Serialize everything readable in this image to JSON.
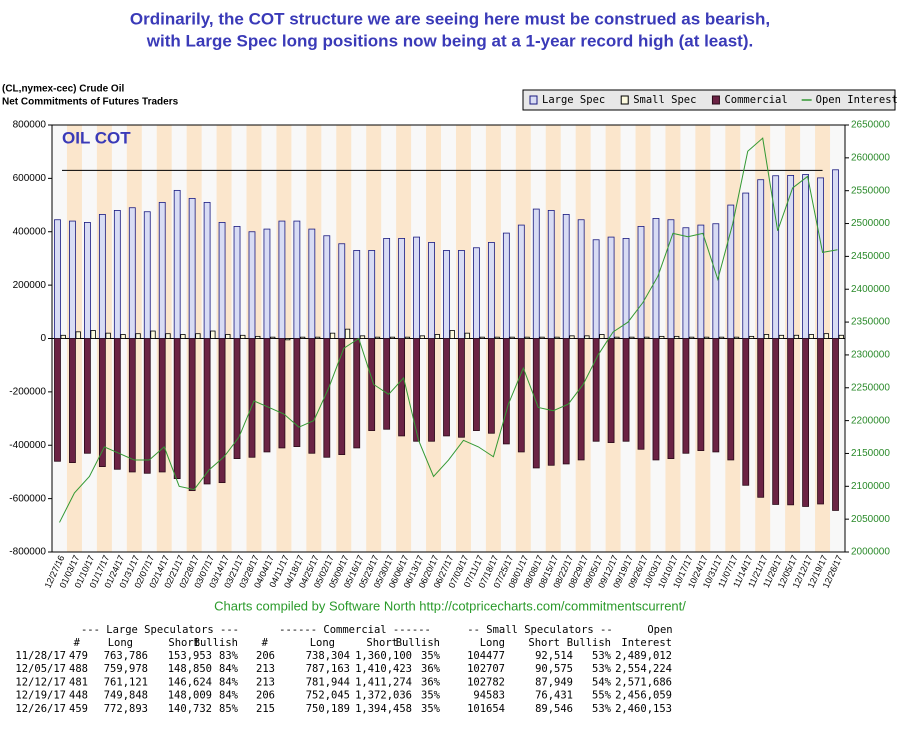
{
  "chart_data": {
    "type": "bar",
    "title": "Ordinarily, the COT structure we are seeing here must be construed as bearish,",
    "subtitle": "with Large Spec long positions now being at a 1-year record high (at least).",
    "symbol": "(CL,nymex-cec) Crude Oil",
    "chart_subtitle": "Net Commitments of Futures Traders",
    "annotation": "OIL COT",
    "credit": "Charts compiled by Software North  http://cotpricecharts.com/commitmentscurrent/",
    "legend": "top-right",
    "categories": [
      "12/27/16",
      "01/03/17",
      "01/10/17",
      "01/17/17",
      "01/24/17",
      "01/31/17",
      "02/07/17",
      "02/14/17",
      "02/21/17",
      "02/28/17",
      "03/07/17",
      "03/14/17",
      "03/21/17",
      "03/28/17",
      "04/04/17",
      "04/11/17",
      "04/18/17",
      "04/25/17",
      "05/02/17",
      "05/09/17",
      "05/16/17",
      "05/23/17",
      "05/30/17",
      "06/06/17",
      "06/13/17",
      "06/20/17",
      "06/27/17",
      "07/03/17",
      "07/11/17",
      "07/18/17",
      "07/25/17",
      "08/01/17",
      "08/08/17",
      "08/15/17",
      "08/22/17",
      "08/29/17",
      "09/05/17",
      "09/12/17",
      "09/19/17",
      "09/26/17",
      "10/03/17",
      "10/10/17",
      "10/17/17",
      "10/24/17",
      "10/31/17",
      "11/07/17",
      "11/14/17",
      "11/21/17",
      "11/28/17",
      "12/05/17",
      "12/12/17",
      "12/19/17",
      "12/26/17"
    ],
    "series": [
      {
        "name": "Large Spec",
        "kind": "bar",
        "color": "#d8dcf4",
        "stroke": "#1a1a80",
        "values": [
          445000,
          440000,
          435000,
          465000,
          480000,
          490000,
          475000,
          510000,
          555000,
          525000,
          510000,
          435000,
          420000,
          400000,
          410000,
          440000,
          440000,
          410000,
          385000,
          355000,
          330000,
          330000,
          375000,
          375000,
          380000,
          360000,
          330000,
          330000,
          340000,
          360000,
          395000,
          425000,
          485000,
          480000,
          465000,
          445000,
          370000,
          380000,
          375000,
          420000,
          450000,
          445000,
          415000,
          425000,
          430000,
          500000,
          545000,
          595000,
          609833,
          611128,
          614497,
          601839,
          632161
        ]
      },
      {
        "name": "Small Spec",
        "kind": "bar",
        "color": "#fdfbe0",
        "stroke": "#000000",
        "values": [
          12000,
          25000,
          30000,
          20000,
          15000,
          18000,
          28000,
          18000,
          15000,
          18000,
          28000,
          15000,
          12000,
          8000,
          5000,
          -5000,
          5000,
          5000,
          20000,
          35000,
          10000,
          5000,
          5000,
          5000,
          10000,
          15000,
          30000,
          20000,
          5000,
          5000,
          5000,
          5000,
          5000,
          5000,
          10000,
          10000,
          15000,
          5000,
          5000,
          5000,
          8000,
          8000,
          5000,
          5000,
          5000,
          5000,
          8000,
          15000,
          11963,
          12132,
          14833,
          18152,
          12108
        ]
      },
      {
        "name": "Commercial",
        "kind": "bar",
        "color": "#6b2344",
        "stroke": "#2a0a18",
        "values": [
          -460000,
          -465000,
          -430000,
          -480000,
          -490000,
          -500000,
          -505000,
          -500000,
          -525000,
          -570000,
          -545000,
          -540000,
          -450000,
          -445000,
          -425000,
          -410000,
          -405000,
          -430000,
          -445000,
          -435000,
          -410000,
          -345000,
          -340000,
          -365000,
          -385000,
          -385000,
          -365000,
          -370000,
          -345000,
          -355000,
          -395000,
          -425000,
          -485000,
          -475000,
          -470000,
          -455000,
          -385000,
          -390000,
          -385000,
          -415000,
          -455000,
          -450000,
          -430000,
          -420000,
          -425000,
          -455000,
          -550000,
          -595000,
          -621796,
          -623260,
          -629330,
          -619991,
          -644269
        ]
      },
      {
        "name": "Open Interest",
        "kind": "line",
        "axis": "y2",
        "color": "#339933",
        "values": [
          2045000,
          2090000,
          2115000,
          2160000,
          2150000,
          2140000,
          2140000,
          2160000,
          2100000,
          2095000,
          2125000,
          2145000,
          2175000,
          2230000,
          2220000,
          2210000,
          2190000,
          2200000,
          2250000,
          2310000,
          2325000,
          2255000,
          2240000,
          2265000,
          2170000,
          2115000,
          2140000,
          2170000,
          2160000,
          2145000,
          2225000,
          2280000,
          2220000,
          2215000,
          2225000,
          2255000,
          2300000,
          2335000,
          2350000,
          2380000,
          2420000,
          2485000,
          2480000,
          2485000,
          2415000,
          2500000,
          2610000,
          2630000,
          2489012,
          2554224,
          2571686,
          2456059,
          2460153
        ]
      }
    ],
    "reference_line": 630000,
    "ylim": [
      -800000,
      800000
    ],
    "yticks": [
      -800000,
      -600000,
      -400000,
      -200000,
      0,
      200000,
      400000,
      600000,
      800000
    ],
    "y2lim": [
      2000000,
      2650000
    ],
    "y2ticks": [
      2000000,
      2050000,
      2100000,
      2150000,
      2200000,
      2250000,
      2300000,
      2350000,
      2400000,
      2450000,
      2500000,
      2550000,
      2600000,
      2650000
    ]
  },
  "table": {
    "group_headers": [
      "--- Large Speculators ---",
      "------ Commercial ------",
      "-- Small Speculators --",
      "Open"
    ],
    "headers": [
      "#",
      "Long",
      "Short",
      "Bullish",
      "#",
      "Long",
      "Short",
      "Bullish",
      "Long",
      "Short",
      "Bullish",
      "Interest"
    ],
    "rows": [
      [
        "11/28/17",
        "479",
        "763,786",
        "153,953",
        "83%",
        "206",
        "738,304",
        "1,360,100",
        "35%",
        "104477",
        "92,514",
        "53%",
        "2,489,012"
      ],
      [
        "12/05/17",
        "488",
        "759,978",
        "148,850",
        "84%",
        "213",
        "787,163",
        "1,410,423",
        "36%",
        "102707",
        "90,575",
        "53%",
        "2,554,224"
      ],
      [
        "12/12/17",
        "481",
        "761,121",
        "146,624",
        "84%",
        "213",
        "781,944",
        "1,411,274",
        "36%",
        "102782",
        "87,949",
        "54%",
        "2,571,686"
      ],
      [
        "12/19/17",
        "448",
        "749,848",
        "148,009",
        "84%",
        "206",
        "752,045",
        "1,372,036",
        "35%",
        "94583",
        "76,431",
        "55%",
        "2,456,059"
      ],
      [
        "12/26/17",
        "459",
        "772,893",
        "140,732",
        "85%",
        "215",
        "750,189",
        "1,394,458",
        "35%",
        "101654",
        "89,546",
        "53%",
        "2,460,153"
      ]
    ]
  }
}
